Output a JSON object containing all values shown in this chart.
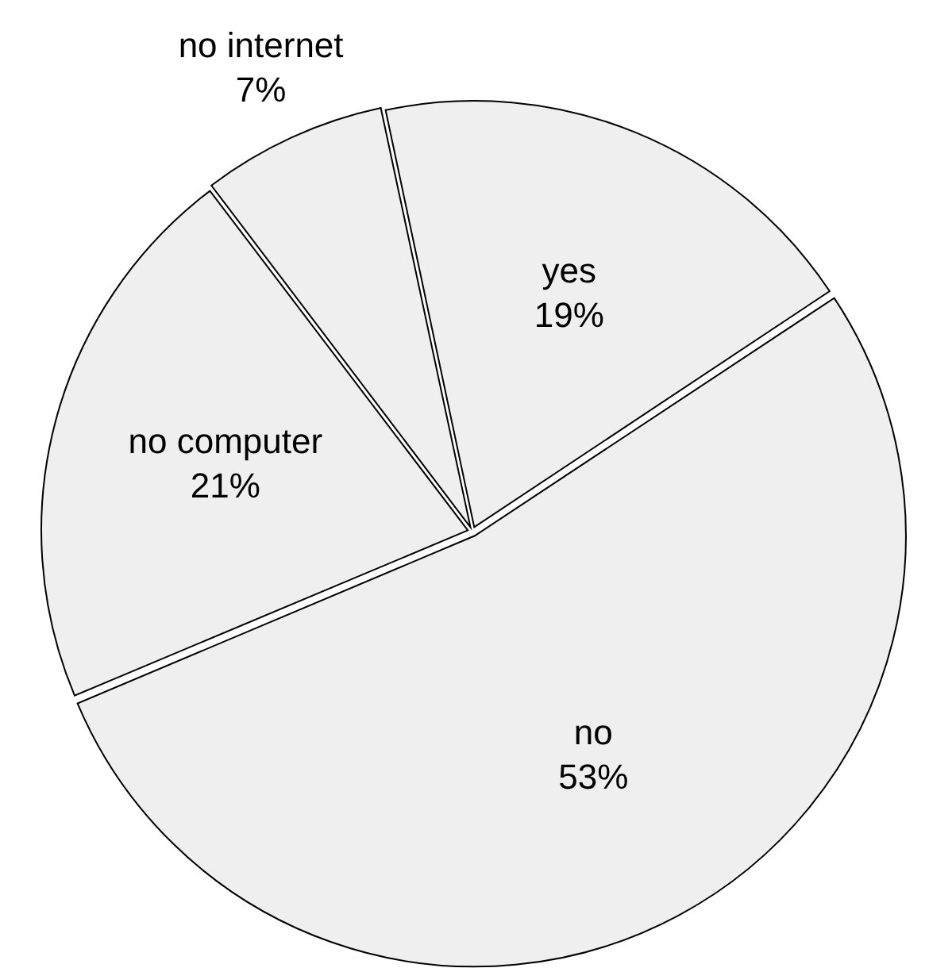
{
  "chart_data": {
    "type": "pie",
    "categories": [
      "yes",
      "no",
      "no computer",
      "no internet"
    ],
    "values": [
      19,
      53,
      21,
      7
    ],
    "value_labels": [
      "19%",
      "53%",
      "21%",
      "7%"
    ],
    "colors": [
      "#efefef",
      "#efefef",
      "#efefef",
      "#efefef"
    ],
    "legend": false
  }
}
